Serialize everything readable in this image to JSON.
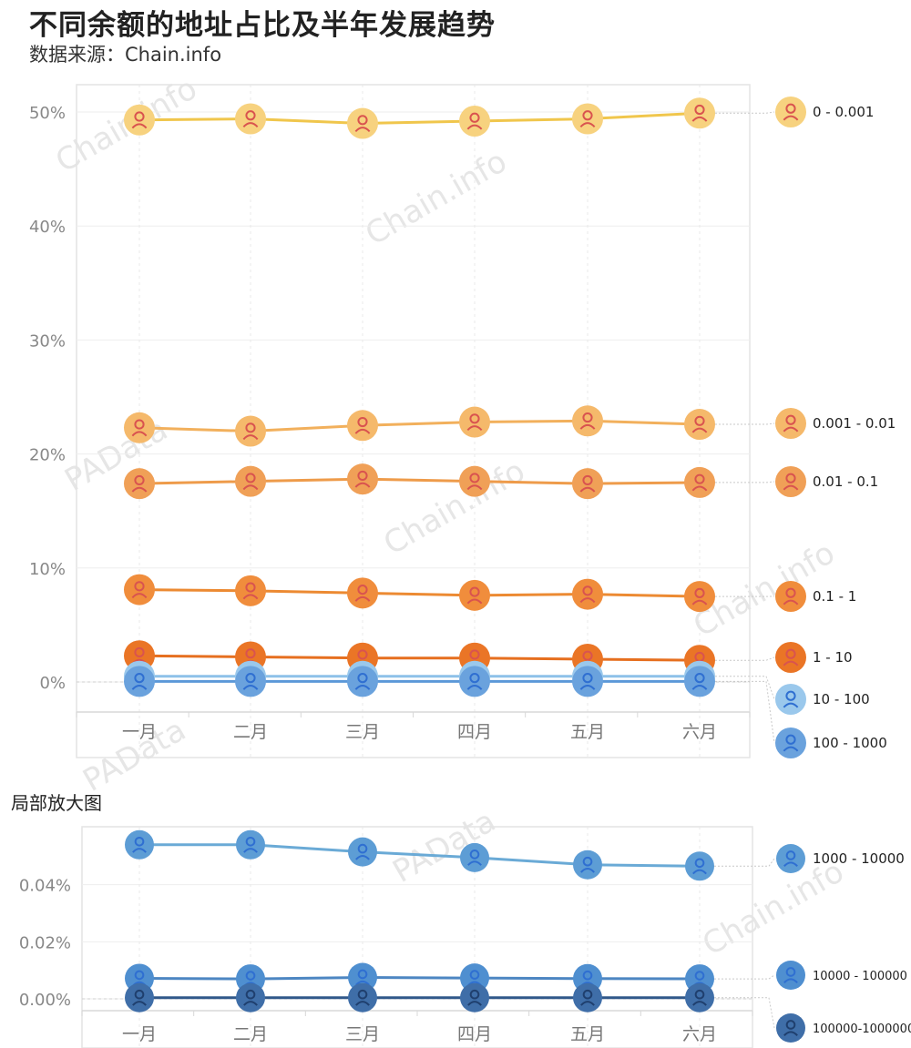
{
  "title": "不同余额的地址占比及半年发展趋势",
  "source": "数据来源：Chain.info",
  "inset_label": "局部放大图",
  "watermarks": [
    "Chain.info",
    "PAData"
  ],
  "chart_data": [
    {
      "type": "line",
      "x": [
        "一月",
        "二月",
        "三月",
        "四月",
        "五月",
        "六月"
      ],
      "ylim": [
        0,
        50
      ],
      "yticks": [
        "0%",
        "10%",
        "20%",
        "30%",
        "40%",
        "50%"
      ],
      "grid": true,
      "legend_position": "right",
      "series": [
        {
          "name": "0 - 0.001",
          "color": "#f0c64c",
          "marker": "#f7d27f",
          "values": [
            49.3,
            49.4,
            49.0,
            49.2,
            49.4,
            49.9
          ]
        },
        {
          "name": "0.001 - 0.01",
          "color": "#f2b05c",
          "marker": "#f5b96b",
          "values": [
            22.3,
            22.0,
            22.5,
            22.8,
            22.9,
            22.6
          ]
        },
        {
          "name": "0.01 - 0.1",
          "color": "#ee9b4a",
          "marker": "#f0a057",
          "values": [
            17.4,
            17.6,
            17.8,
            17.6,
            17.4,
            17.5
          ]
        },
        {
          "name": "0.1 - 1",
          "color": "#ec8a32",
          "marker": "#f08d3c",
          "values": [
            8.1,
            8.0,
            7.8,
            7.6,
            7.7,
            7.5
          ]
        },
        {
          "name": "1 - 10",
          "color": "#e66f1f",
          "marker": "#ea7526",
          "values": [
            2.3,
            2.2,
            2.1,
            2.1,
            2.0,
            1.9
          ]
        },
        {
          "name": "10 - 100",
          "color": "#8dc1e8",
          "marker": "#9ac8ec",
          "values": [
            0.5,
            0.5,
            0.5,
            0.5,
            0.5,
            0.5
          ]
        },
        {
          "name": "100 - 1000",
          "color": "#5b98d8",
          "marker": "#6aa2dd",
          "values": [
            0.05,
            0.05,
            0.05,
            0.05,
            0.05,
            0.05
          ]
        }
      ]
    },
    {
      "type": "line",
      "x": [
        "一月",
        "二月",
        "三月",
        "四月",
        "五月",
        "六月"
      ],
      "ylim": [
        0,
        0.06
      ],
      "yticks": [
        "0.00%",
        "0.02%",
        "0.04%"
      ],
      "grid": true,
      "legend_position": "right",
      "series": [
        {
          "name": "1000 - 10000",
          "color": "#6aaad6",
          "marker": "#5d9dd5",
          "values": [
            0.054,
            0.054,
            0.0515,
            0.0495,
            0.047,
            0.0465
          ]
        },
        {
          "name": "10000 - 100000",
          "color": "#4d86c2",
          "marker": "#4f8fd0",
          "values": [
            0.0072,
            0.007,
            0.0075,
            0.0073,
            0.0071,
            0.007
          ]
        },
        {
          "name": "100000-1000000",
          "color": "#30588a",
          "marker": "#3f6ea8",
          "values": [
            0.0004,
            0.0004,
            0.0004,
            0.0004,
            0.0004,
            0.0004
          ]
        }
      ]
    }
  ]
}
